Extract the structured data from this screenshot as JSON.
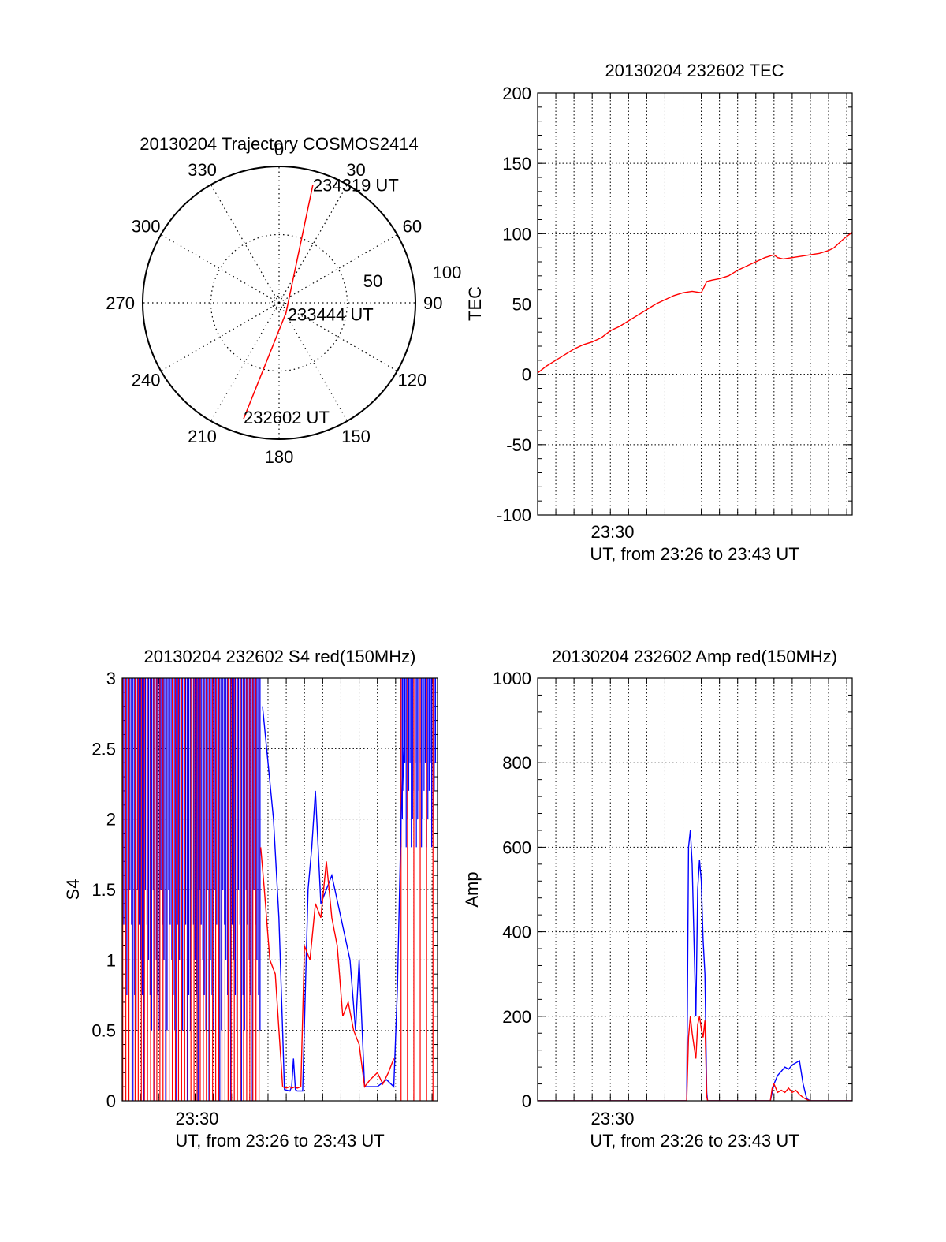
{
  "colors": {
    "red": "#ff0000",
    "blue": "#0000ff",
    "axis": "#000000",
    "grid": "#000000"
  },
  "chart_data": [
    {
      "type": "polar",
      "title": "20130204 Trajectory COSMOS2414",
      "azimuth_labels": [
        "0",
        "30",
        "60",
        "90",
        "120",
        "150",
        "180",
        "210",
        "240",
        "270",
        "300",
        "330"
      ],
      "radial_labels": [
        "50",
        "100"
      ],
      "trajectory": [
        {
          "time": "232602 UT",
          "az": 197,
          "el": 10
        },
        {
          "time": "233444 UT",
          "az": 145,
          "el": 82
        },
        {
          "time": "234319 UT",
          "az": 16,
          "el": 9
        }
      ]
    },
    {
      "type": "line",
      "title": "20130204 232602 TEC",
      "xlabel": "UT, from 23:26 to 23:43 UT",
      "ylabel": "TEC",
      "xtick_labels": [
        "23:30"
      ],
      "yticks": [
        -100,
        -50,
        0,
        50,
        100,
        150,
        200
      ],
      "ylim": [
        -100,
        200
      ],
      "x_range_minutes": [
        0,
        17.3
      ],
      "series": [
        {
          "color": "red",
          "x": [
            0,
            0.5,
            1,
            1.5,
            2,
            2.5,
            3,
            3.5,
            4,
            4.5,
            5,
            5.5,
            6,
            6.5,
            7,
            7.5,
            8,
            8.5,
            9,
            9.3,
            9.6,
            10,
            10.5,
            11,
            11.5,
            12,
            12.5,
            13,
            13.2,
            13.5,
            14,
            14.5,
            15,
            15.5,
            16,
            16.3,
            16.8,
            17.3
          ],
          "y": [
            1,
            6,
            10,
            14,
            18,
            21,
            23,
            26,
            31,
            34,
            38,
            42,
            46,
            50,
            53,
            56,
            58,
            59,
            58,
            66,
            67,
            68,
            70,
            74,
            77,
            80,
            83,
            85,
            83,
            82,
            83,
            84,
            85,
            86,
            88,
            90,
            96,
            101
          ]
        }
      ]
    },
    {
      "type": "line",
      "title": "20130204 232602 S4 red(150MHz)",
      "xlabel": "UT, from 23:26 to 23:43 UT",
      "ylabel": "S4",
      "xtick_labels": [
        "23:30"
      ],
      "yticks": [
        0,
        0.5,
        1,
        1.5,
        2,
        2.5,
        3
      ],
      "ylim": [
        0,
        3
      ],
      "x_range_minutes": [
        0,
        17.3
      ],
      "series": [
        {
          "color": "blue",
          "x": [
            7.7,
            8.0,
            8.3,
            8.6,
            8.8,
            8.9,
            9.2,
            9.3,
            9.4,
            9.5,
            9.6,
            9.9,
            10.2,
            10.4,
            10.6,
            10.9,
            11.2,
            11.5,
            12.0,
            12.5,
            12.8,
            13.0,
            13.3,
            13.6,
            14.0,
            14.5,
            14.9,
            15.1,
            15.3,
            15.5
          ],
          "y": [
            2.8,
            2.4,
            2.0,
            1.3,
            0.5,
            0.08,
            0.07,
            0.1,
            0.3,
            0.08,
            0.07,
            0.07,
            1.5,
            1.8,
            2.2,
            1.4,
            1.5,
            1.6,
            1.3,
            1.0,
            0.5,
            1.0,
            0.1,
            0.1,
            0.1,
            0.15,
            0.1,
            0.8,
            2.0,
            2.7
          ]
        },
        {
          "color": "red",
          "x": [
            7.6,
            7.8,
            8.1,
            8.4,
            8.7,
            8.8,
            9.0,
            9.2,
            9.3,
            9.5,
            9.6,
            9.8,
            10.0,
            10.3,
            10.6,
            10.9,
            11.2,
            11.5,
            11.8,
            12.1,
            12.4,
            12.7,
            13.0,
            13.3,
            13.6,
            14.0,
            14.3,
            14.6,
            14.9
          ],
          "y": [
            1.8,
            1.5,
            1.0,
            0.9,
            0.3,
            0.1,
            0.09,
            0.1,
            0.09,
            0.1,
            0.09,
            0.1,
            1.1,
            1.0,
            1.4,
            1.3,
            1.7,
            1.3,
            1.1,
            0.6,
            0.7,
            0.5,
            0.4,
            0.1,
            0.15,
            0.2,
            0.12,
            0.2,
            0.3
          ]
        }
      ]
    },
    {
      "type": "line",
      "title": "20130204 232602 Amp red(150MHz)",
      "xlabel": "UT, from 23:26 to 23:43 UT",
      "ylabel": "Amp",
      "xtick_labels": [
        "23:30"
      ],
      "yticks": [
        0,
        200,
        400,
        600,
        800,
        1000
      ],
      "ylim": [
        0,
        1000
      ],
      "x_range_minutes": [
        0,
        17.3
      ],
      "series": [
        {
          "color": "blue",
          "x": [
            0,
            8.2,
            8.3,
            8.4,
            8.5,
            8.6,
            8.7,
            8.8,
            8.9,
            9.0,
            9.1,
            9.2,
            9.3,
            9.35,
            9.4,
            12.8,
            12.9,
            13.0,
            13.2,
            13.4,
            13.6,
            13.8,
            14.0,
            14.2,
            14.4,
            14.6,
            14.8,
            15.0,
            17.3
          ],
          "y": [
            0,
            0,
            600,
            640,
            560,
            380,
            200,
            500,
            570,
            520,
            380,
            300,
            20,
            0,
            0,
            0,
            20,
            40,
            60,
            70,
            80,
            75,
            85,
            90,
            95,
            40,
            5,
            0,
            0
          ]
        },
        {
          "color": "red",
          "x": [
            0,
            8.2,
            8.3,
            8.4,
            8.5,
            8.6,
            8.7,
            8.8,
            8.9,
            9.0,
            9.1,
            9.2,
            9.3,
            9.35,
            9.4,
            12.8,
            12.9,
            13.0,
            13.2,
            13.4,
            13.6,
            13.8,
            14.0,
            14.2,
            14.4,
            14.6,
            14.8,
            15.0,
            17.3
          ],
          "y": [
            0,
            0,
            150,
            200,
            160,
            130,
            100,
            180,
            200,
            170,
            150,
            190,
            10,
            0,
            0,
            0,
            30,
            40,
            20,
            25,
            20,
            30,
            20,
            25,
            15,
            8,
            3,
            0,
            0
          ]
        }
      ]
    }
  ]
}
